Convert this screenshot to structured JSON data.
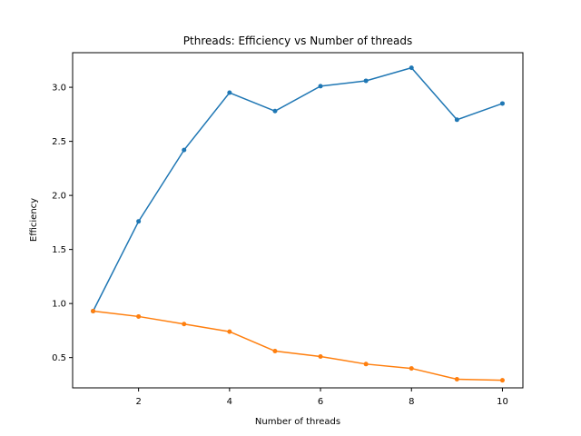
{
  "chart_data": {
    "type": "line",
    "title": "Pthreads: Efficiency vs Number of threads",
    "xlabel": "Number of threads",
    "ylabel": "Efficiency",
    "xlim": [
      0.55,
      10.45
    ],
    "ylim": [
      0.22,
      3.32
    ],
    "xticks": [
      2,
      4,
      6,
      8,
      10
    ],
    "yticks": [
      0.5,
      1.0,
      1.5,
      2.0,
      2.5,
      3.0
    ],
    "grid": false,
    "x": [
      1,
      2,
      3,
      4,
      5,
      6,
      7,
      8,
      9,
      10
    ],
    "series": [
      {
        "color": "#1f77b4",
        "marker": "dot",
        "values": [
          0.93,
          1.76,
          2.42,
          2.95,
          2.78,
          3.01,
          3.06,
          3.18,
          2.7,
          2.85
        ]
      },
      {
        "color": "#ff7f0e",
        "marker": "dot",
        "values": [
          0.93,
          0.88,
          0.81,
          0.74,
          0.56,
          0.51,
          0.44,
          0.4,
          0.3,
          0.29
        ]
      }
    ]
  }
}
